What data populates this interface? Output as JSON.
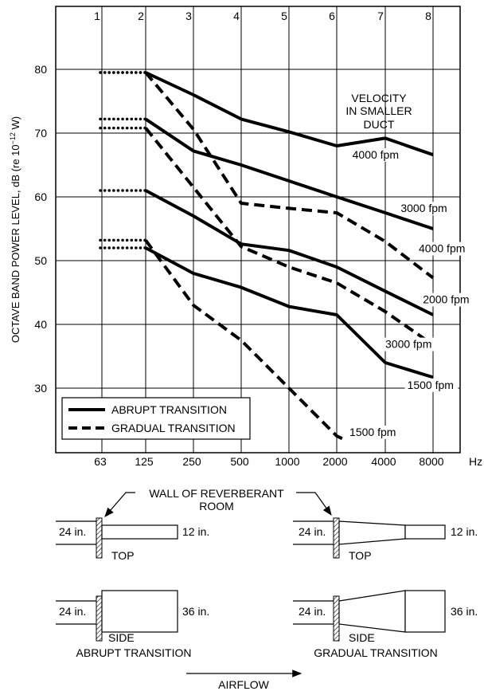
{
  "chart_data": {
    "type": "line",
    "ylabel": "OCTAVE BAND POWER LEVEL, dB (re 10",
    "ylabel_exp": "−12",
    "ylabel_tail": " W)",
    "ylim": [
      23,
      95
    ],
    "yticks": [
      30,
      40,
      50,
      60,
      70,
      80
    ],
    "band_numbers": [
      "1",
      "2",
      "3",
      "4",
      "5",
      "6",
      "7",
      "8"
    ],
    "x_tick_labels": [
      "63",
      "125",
      "250",
      "500",
      "1000",
      "2000",
      "4000",
      "8000"
    ],
    "x_unit": "Hz",
    "x_categories": [
      63,
      125,
      250,
      500,
      1000,
      2000,
      4000,
      8000
    ],
    "annotation": [
      "VELOCITY",
      "IN SMALLER",
      "DUCT"
    ],
    "legend": [
      {
        "label": "ABRUPT TRANSITION",
        "style": "solid"
      },
      {
        "label": "GRADUAL TRANSITION",
        "style": "dashed"
      }
    ],
    "series": [
      {
        "name": "4000 fpm",
        "transition": "abrupt",
        "x": [
          125,
          250,
          500,
          1000,
          2000,
          4000,
          8000
        ],
        "values": [
          79.5,
          76,
          72.2,
          70.2,
          68,
          69.2,
          66.6
        ],
        "dotted_63": 79.5
      },
      {
        "name": "3000 fpm",
        "transition": "abrupt",
        "x": [
          125,
          250,
          500,
          1000,
          2000,
          4000,
          8000
        ],
        "values": [
          72.2,
          67.2,
          65,
          62.5,
          60,
          57.5,
          55
        ],
        "dotted_63": 72.2
      },
      {
        "name": "2000 fpm",
        "transition": "abrupt",
        "x": [
          125,
          250,
          500,
          1000,
          2000,
          4000,
          8000
        ],
        "values": [
          61,
          57,
          52.6,
          51.6,
          49,
          45.2,
          41.5
        ],
        "dotted_63": 61
      },
      {
        "name": "1500 fpm",
        "transition": "abrupt",
        "x": [
          125,
          250,
          500,
          1000,
          2000,
          4000,
          8000
        ],
        "values": [
          52,
          48,
          45.8,
          42.8,
          41.5,
          34,
          31.7
        ],
        "dotted_63": 52
      },
      {
        "name": "4000 fpm",
        "transition": "gradual",
        "x": [
          125,
          250,
          500,
          1000,
          2000,
          4000,
          8000
        ],
        "values": [
          79.5,
          70.6,
          59,
          58.2,
          57.5,
          53,
          47.3
        ],
        "dotted_63": 79.5
      },
      {
        "name": "3000 fpm",
        "transition": "gradual",
        "x": [
          125,
          250,
          500,
          1000,
          2000,
          4000,
          8000
        ],
        "values": [
          70.8,
          61.5,
          52.2,
          49,
          46.5,
          42,
          36.8
        ],
        "dotted_63": 70.8
      },
      {
        "name": "1500 fpm",
        "transition": "gradual",
        "x": [
          125,
          250,
          500,
          1000,
          2000,
          2200
        ],
        "values": [
          53.2,
          43,
          37.5,
          30,
          22.5,
          22
        ],
        "dotted_63": 53.2
      }
    ],
    "series_labels": [
      {
        "text": "4000 fpm",
        "x": 2500,
        "y": 66
      },
      {
        "text": "3000",
        "x": 5000,
        "y": 57.6,
        "suffix": "fpm"
      },
      {
        "text": "4000 fpm",
        "x": 6500,
        "y": 51.3
      },
      {
        "text": "2000 fpm",
        "x": 6900,
        "y": 43.3
      },
      {
        "text": "3000",
        "x": 4000,
        "y": 36.3,
        "suffix": "fpm"
      },
      {
        "text": "1500 fpm",
        "x": 5500,
        "y": 29.9
      },
      {
        "text": "1500",
        "x": 2400,
        "y": 22.5,
        "suffix": "fpm"
      }
    ]
  },
  "diagram": {
    "wall_label_line1": "WALL OF REVERBERANT",
    "wall_label_line2": "ROOM",
    "abrupt": {
      "top_inlet": "24 in.",
      "top_outlet": "12 in.",
      "top_view": "TOP",
      "side_inlet": "24 in.",
      "side_outlet": "36 in.",
      "side_view": "SIDE",
      "caption": "ABRUPT TRANSITION"
    },
    "gradual": {
      "top_inlet": "24 in.",
      "top_outlet": "12 in.",
      "top_view": "TOP",
      "side_inlet": "24 in.",
      "side_outlet": "36 in.",
      "side_view": "SIDE",
      "caption": "GRADUAL TRANSITION"
    },
    "airflow_label": "AIRFLOW"
  }
}
